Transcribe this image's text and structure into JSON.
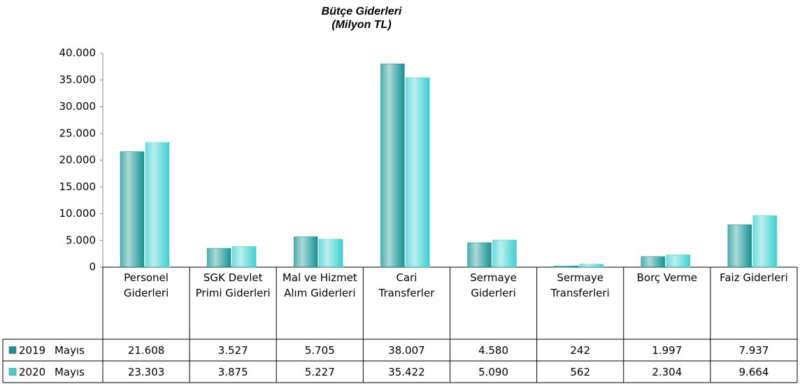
{
  "chart_data": {
    "type": "bar",
    "title": "Bütçe Giderleri",
    "subtitle": "(Milyon TL)",
    "categories": [
      "Personel Giderleri",
      "SGK Devlet Primi Giderleri",
      "Mal ve Hizmet Alım Giderleri",
      "Cari Transferler",
      "Sermaye Giderleri",
      "Sermaye Transferleri",
      "Borç Verme",
      "Faiz Giderleri"
    ],
    "series": [
      {
        "name": "2019 Mayıs",
        "color": "#139393",
        "values": [
          21608,
          3527,
          5705,
          38007,
          4580,
          242,
          1997,
          7937
        ],
        "value_labels": [
          "21.608",
          "3.527",
          "5.705",
          "38.007",
          "4.580",
          "242",
          "1.997",
          "7.937"
        ]
      },
      {
        "name": "2020 Mayıs",
        "color": "#3cd0d0",
        "values": [
          23303,
          3875,
          5227,
          35422,
          5090,
          562,
          2304,
          9664
        ],
        "value_labels": [
          "23.303",
          "3.875",
          "5.227",
          "35.422",
          "5.090",
          "562",
          "2.304",
          "9.664"
        ]
      }
    ],
    "ylim": [
      0,
      40000
    ],
    "yticks": [
      0,
      {
        "value": 5000,
        "label": "5.000"
      },
      {
        "value": 10000,
        "label": "10.000"
      },
      {
        "value": 15000,
        "label": "15.000"
      },
      {
        "value": 20000,
        "label": "20.000"
      },
      {
        "value": 25000,
        "label": "25.000"
      },
      {
        "value": 30000,
        "label": "30.000"
      },
      {
        "value": 35000,
        "label": "35.000"
      },
      {
        "value": 40000,
        "label": "40.000"
      }
    ],
    "grid": false
  }
}
